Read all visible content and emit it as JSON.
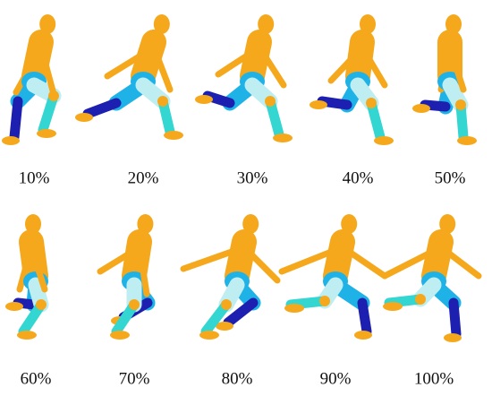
{
  "frames": [
    {
      "label": "10%"
    },
    {
      "label": "20%"
    },
    {
      "label": "30%"
    },
    {
      "label": "40%"
    },
    {
      "label": "50%"
    },
    {
      "label": "60%"
    },
    {
      "label": "70%"
    },
    {
      "label": "80%"
    },
    {
      "label": "90%"
    },
    {
      "label": "100%"
    }
  ]
}
